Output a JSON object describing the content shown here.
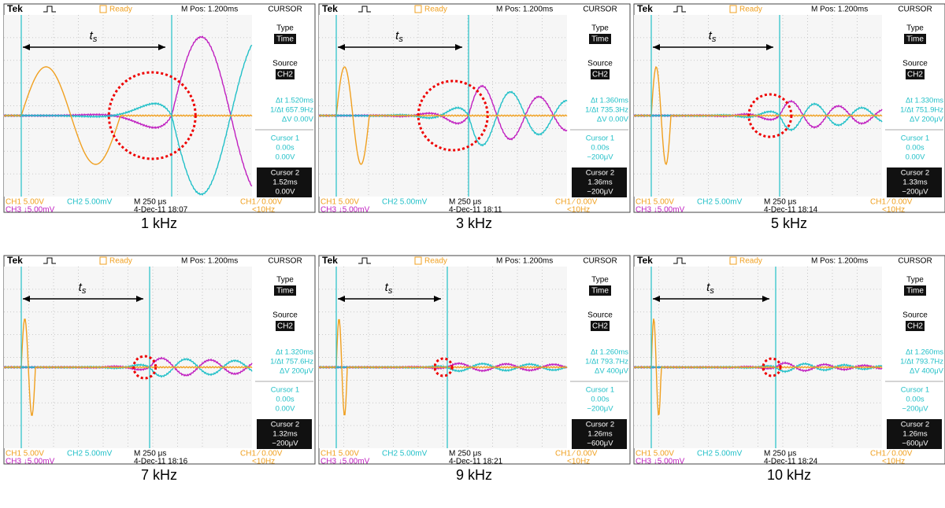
{
  "panels": [
    {
      "caption": "1 kHz",
      "header": {
        "brand": "Tek",
        "status": "Ready",
        "position": "M Pos: 1.200ms",
        "menu": "CURSOR"
      },
      "ts_label": {
        "main": "t",
        "sub": "s"
      },
      "side": {
        "type_label": "Type",
        "type_value": "Time",
        "source_label": "Source",
        "source_value": "CH2",
        "dt": "Δt 1.520ms",
        "inv_dt": "1/Δt 657.9Hz",
        "dv": "ΔV 0.00V",
        "cursor1_label": "Cursor 1",
        "cursor1_t": "0.00s",
        "cursor1_v": "0.00V",
        "cursor2_label": "Cursor 2",
        "cursor2_t": "1.52ms",
        "cursor2_v": "0.00V"
      },
      "footer": {
        "ch1": "CH1  5.00V",
        "ch2": "CH2  5.00mV",
        "timebase": "M 250 μs",
        "trigger": "CH1 ⁄ 0.00V",
        "ch3": "CH3 ↓5.00mV",
        "date": "4-Dec-11 18:07",
        "freq": "<10Hz"
      }
    },
    {
      "caption": "3 kHz",
      "header": {
        "brand": "Tek",
        "status": "Ready",
        "position": "M Pos: 1.200ms",
        "menu": "CURSOR"
      },
      "ts_label": {
        "main": "t",
        "sub": "s"
      },
      "side": {
        "type_label": "Type",
        "type_value": "Time",
        "source_label": "Source",
        "source_value": "CH2",
        "dt": "Δt 1.360ms",
        "inv_dt": "1/Δt 735.3Hz",
        "dv": "ΔV 0.00V",
        "cursor1_label": "Cursor 1",
        "cursor1_t": "0.00s",
        "cursor1_v": "−200μV",
        "cursor2_label": "Cursor 2",
        "cursor2_t": "1.36ms",
        "cursor2_v": "−200μV"
      },
      "footer": {
        "ch1": "CH1  5.00V",
        "ch2": "CH2  5.00mV",
        "timebase": "M 250 μs",
        "trigger": "CH1 ⁄ 0.00V",
        "ch3": "CH3 ↓5.00mV",
        "date": "4-Dec-11 18:11",
        "freq": "<10Hz"
      }
    },
    {
      "caption": "5 kHz",
      "header": {
        "brand": "Tek",
        "status": "Ready",
        "position": "M Pos: 1.200ms",
        "menu": "CURSOR"
      },
      "ts_label": {
        "main": "t",
        "sub": "s"
      },
      "side": {
        "type_label": "Type",
        "type_value": "Time",
        "source_label": "Source",
        "source_value": "CH2",
        "dt": "Δt 1.330ms",
        "inv_dt": "1/Δt 751.9Hz",
        "dv": "ΔV 200μV",
        "cursor1_label": "Cursor 1",
        "cursor1_t": "0.00s",
        "cursor1_v": "0.00V",
        "cursor2_label": "Cursor 2",
        "cursor2_t": "1.33ms",
        "cursor2_v": "−200μV"
      },
      "footer": {
        "ch1": "CH1  5.00V",
        "ch2": "CH2  5.00mV",
        "timebase": "M 250 μs",
        "trigger": "CH1 ⁄ 0.00V",
        "ch3": "CH3 ↓5.00mV",
        "date": "4-Dec-11 18:14",
        "freq": "<10Hz"
      }
    },
    {
      "caption": "7 kHz",
      "header": {
        "brand": "Tek",
        "status": "Ready",
        "position": "M Pos: 1.200ms",
        "menu": "CURSOR"
      },
      "ts_label": {
        "main": "t",
        "sub": "s"
      },
      "side": {
        "type_label": "Type",
        "type_value": "Time",
        "source_label": "Source",
        "source_value": "CH2",
        "dt": "Δt 1.320ms",
        "inv_dt": "1/Δt 757.6Hz",
        "dv": "ΔV 200μV",
        "cursor1_label": "Cursor 1",
        "cursor1_t": "0.00s",
        "cursor1_v": "0.00V",
        "cursor2_label": "Cursor 2",
        "cursor2_t": "1.32ms",
        "cursor2_v": "−200μV"
      },
      "footer": {
        "ch1": "CH1  5.00V",
        "ch2": "CH2  5.00mV",
        "timebase": "M 250 μs",
        "trigger": "CH1 ⁄ 0.00V",
        "ch3": "CH3 ↓5.00mV",
        "date": "4-Dec-11 18:16",
        "freq": "<10Hz"
      }
    },
    {
      "caption": "9 kHz",
      "header": {
        "brand": "Tek",
        "status": "Ready",
        "position": "M Pos: 1.200ms",
        "menu": "CURSOR"
      },
      "ts_label": {
        "main": "t",
        "sub": "s"
      },
      "side": {
        "type_label": "Type",
        "type_value": "Time",
        "source_label": "Source",
        "source_value": "CH2",
        "dt": "Δt 1.260ms",
        "inv_dt": "1/Δt 793.7Hz",
        "dv": "ΔV 400μV",
        "cursor1_label": "Cursor 1",
        "cursor1_t": "0.00s",
        "cursor1_v": "−200μV",
        "cursor2_label": "Cursor 2",
        "cursor2_t": "1.26ms",
        "cursor2_v": "−600μV"
      },
      "footer": {
        "ch1": "CH1  5.00V",
        "ch2": "CH2  5.00mV",
        "timebase": "M 250 μs",
        "trigger": "CH1 ⁄ 0.00V",
        "ch3": "CH3 ↓5.00mV",
        "date": "4-Dec-11 18:21",
        "freq": "<10Hz"
      }
    },
    {
      "caption": "10 kHz",
      "header": {
        "brand": "Tek",
        "status": "Ready",
        "position": "M Pos: 1.200ms",
        "menu": "CURSOR"
      },
      "ts_label": {
        "main": "t",
        "sub": "s"
      },
      "side": {
        "type_label": "Type",
        "type_value": "Time",
        "source_label": "Source",
        "source_value": "CH2",
        "dt": "Δt 1.260ms",
        "inv_dt": "1/Δt 793.7Hz",
        "dv": "ΔV 400μV",
        "cursor1_label": "Cursor 1",
        "cursor1_t": "0.00s",
        "cursor1_v": "−200μV",
        "cursor2_label": "Cursor 2",
        "cursor2_t": "1.26ms",
        "cursor2_v": "−600μV"
      },
      "footer": {
        "ch1": "CH1  5.00V",
        "ch2": "CH2  5.00mV",
        "timebase": "M 250 μs",
        "trigger": "CH1 ⁄ 0.00V",
        "ch3": "CH3 ↓5.00mV",
        "date": "4-Dec-11 18:24",
        "freq": "<10Hz"
      }
    }
  ]
}
